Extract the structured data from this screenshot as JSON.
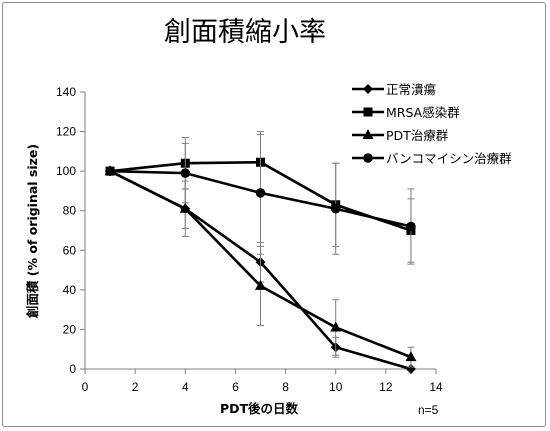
{
  "chart_data": {
    "type": "line",
    "title": "創面積縮小率",
    "xlabel": "PDT後の日数",
    "ylabel": "創面積 (% of original size)",
    "xlim": [
      0,
      14
    ],
    "ylim": [
      0,
      140
    ],
    "x_ticks": [
      0,
      2,
      4,
      6,
      8,
      10,
      12,
      14
    ],
    "y_ticks": [
      0,
      20,
      40,
      60,
      80,
      100,
      120,
      140
    ],
    "grid": false,
    "legend_position": "top-right",
    "note": "n=5",
    "series": [
      {
        "name": "正常潰瘍",
        "marker": "diamond",
        "x": [
          1,
          4,
          7,
          10,
          13
        ],
        "y": [
          100,
          81,
          54,
          11,
          0
        ],
        "err": [
          0,
          10,
          10,
          5,
          0
        ]
      },
      {
        "name": "MRSA感染群",
        "marker": "square",
        "x": [
          1,
          4,
          7,
          10,
          13
        ],
        "y": [
          100,
          104,
          104.5,
          83,
          70
        ],
        "err": [
          0,
          13,
          14,
          21,
          16
        ]
      },
      {
        "name": "PDT治療群",
        "marker": "triangle",
        "x": [
          1,
          4,
          7,
          10,
          13
        ],
        "y": [
          100,
          81,
          42,
          21,
          6
        ],
        "err": [
          0,
          14,
          20,
          14,
          5
        ]
      },
      {
        "name": "バンコマイシン治療群",
        "marker": "circle",
        "x": [
          1,
          4,
          7,
          10,
          13
        ],
        "y": [
          100,
          99,
          89,
          81,
          72
        ],
        "err": [
          0,
          15,
          31,
          23,
          19
        ]
      }
    ]
  }
}
